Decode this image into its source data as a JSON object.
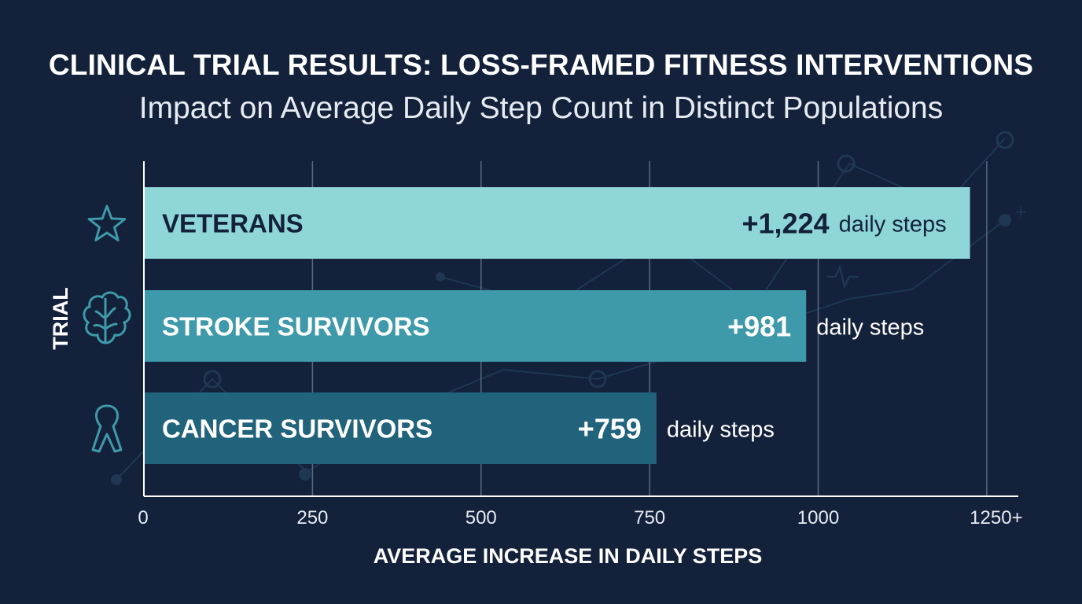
{
  "chart_data": {
    "type": "bar",
    "orientation": "horizontal",
    "title": "CLINICAL TRIAL RESULTS: LOSS-FRAMED FITNESS INTERVENTIONS",
    "subtitle": "Impact on Average Daily Step Count in Distinct Populations",
    "xlabel": "AVERAGE INCREASE IN DAILY STEPS",
    "ylabel": "TRIAL",
    "xlim": [
      0,
      1300
    ],
    "x_ticks": [
      0,
      250,
      500,
      750,
      1000
    ],
    "x_tick_labels": [
      "0",
      "250",
      "500",
      "750",
      "1000"
    ],
    "last_tick_label": "1250+",
    "grid": "vertical",
    "unit": "daily steps",
    "categories": [
      "VETERANS",
      "STROKE SURVIVORS",
      "CANCER SURVIVORS"
    ],
    "values": [
      1224,
      981,
      759
    ],
    "value_labels": [
      "+1,224",
      "+981",
      "+759"
    ],
    "icons": [
      "star-icon",
      "brain-icon",
      "ribbon-icon"
    ],
    "colors": {
      "background": "#13213a",
      "bars": [
        "#8fd6d9",
        "#3e9aaa",
        "#22637c"
      ],
      "category_text": [
        "#13213a",
        "#ffffff",
        "#ffffff"
      ],
      "value_text": [
        "#13213a",
        "#ffffff",
        "#ffffff"
      ],
      "unit_text": [
        "#13213a",
        "#ffffff",
        "#ffffff"
      ],
      "icon": "#3e9aaa",
      "grid": "#5a6a80",
      "axis": "#ffffff"
    }
  }
}
